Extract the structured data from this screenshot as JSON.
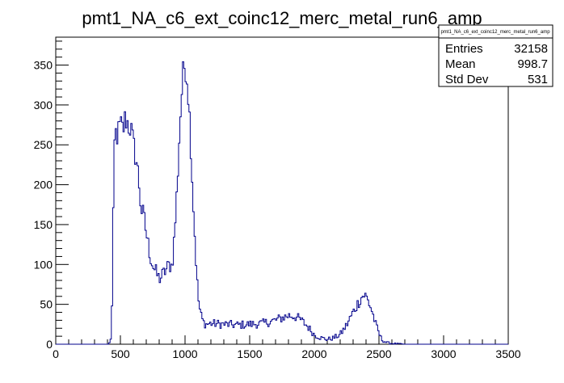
{
  "chart_data": {
    "type": "histogram",
    "title": "pmt1_NA_c6_ext_coinc12_merc_metal_run6_amp",
    "xlabel": "",
    "ylabel": "",
    "xlim": [
      0,
      3500
    ],
    "ylim": [
      0,
      385
    ],
    "x_ticks": [
      0,
      500,
      1000,
      1500,
      2000,
      2500,
      3000,
      3500
    ],
    "y_ticks": [
      0,
      50,
      100,
      150,
      200,
      250,
      300,
      350
    ],
    "bin_width": 10,
    "line_color": "#00008b",
    "grid": false,
    "stats_box": {
      "title": "pmt1_NA_c6_ext_coinc12_merc_metal_run6_amp",
      "rows": [
        {
          "label": "Entries",
          "value": "32158"
        },
        {
          "label": "Mean",
          "value": "998.7"
        },
        {
          "label": "Std Dev",
          "value": "531"
        }
      ],
      "placement": "top-right"
    },
    "profile": [
      [
        0,
        0
      ],
      [
        410,
        0
      ],
      [
        420,
        3
      ],
      [
        430,
        12
      ],
      [
        440,
        80
      ],
      [
        450,
        235
      ],
      [
        460,
        265
      ],
      [
        480,
        262
      ],
      [
        500,
        275
      ],
      [
        520,
        268
      ],
      [
        540,
        285
      ],
      [
        560,
        275
      ],
      [
        580,
        272
      ],
      [
        600,
        250
      ],
      [
        620,
        235
      ],
      [
        640,
        210
      ],
      [
        660,
        170
      ],
      [
        680,
        160
      ],
      [
        700,
        140
      ],
      [
        720,
        120
      ],
      [
        740,
        105
      ],
      [
        760,
        95
      ],
      [
        780,
        88
      ],
      [
        800,
        82
      ],
      [
        820,
        85
      ],
      [
        840,
        90
      ],
      [
        860,
        95
      ],
      [
        880,
        100
      ],
      [
        900,
        98
      ],
      [
        920,
        140
      ],
      [
        940,
        200
      ],
      [
        960,
        275
      ],
      [
        980,
        330
      ],
      [
        1000,
        355
      ],
      [
        1020,
        330
      ],
      [
        1040,
        270
      ],
      [
        1060,
        190
      ],
      [
        1080,
        120
      ],
      [
        1100,
        60
      ],
      [
        1120,
        38
      ],
      [
        1140,
        28
      ],
      [
        1160,
        25
      ],
      [
        1200,
        26
      ],
      [
        1300,
        25
      ],
      [
        1400,
        24
      ],
      [
        1500,
        25
      ],
      [
        1600,
        26
      ],
      [
        1700,
        30
      ],
      [
        1800,
        36
      ],
      [
        1850,
        35
      ],
      [
        1900,
        30
      ],
      [
        1950,
        22
      ],
      [
        2000,
        12
      ],
      [
        2050,
        8
      ],
      [
        2100,
        6
      ],
      [
        2150,
        8
      ],
      [
        2200,
        12
      ],
      [
        2250,
        24
      ],
      [
        2300,
        40
      ],
      [
        2350,
        55
      ],
      [
        2380,
        62
      ],
      [
        2400,
        60
      ],
      [
        2440,
        45
      ],
      [
        2480,
        22
      ],
      [
        2520,
        6
      ],
      [
        2560,
        2
      ],
      [
        2600,
        1
      ],
      [
        2700,
        0
      ],
      [
        3500,
        0
      ]
    ]
  }
}
